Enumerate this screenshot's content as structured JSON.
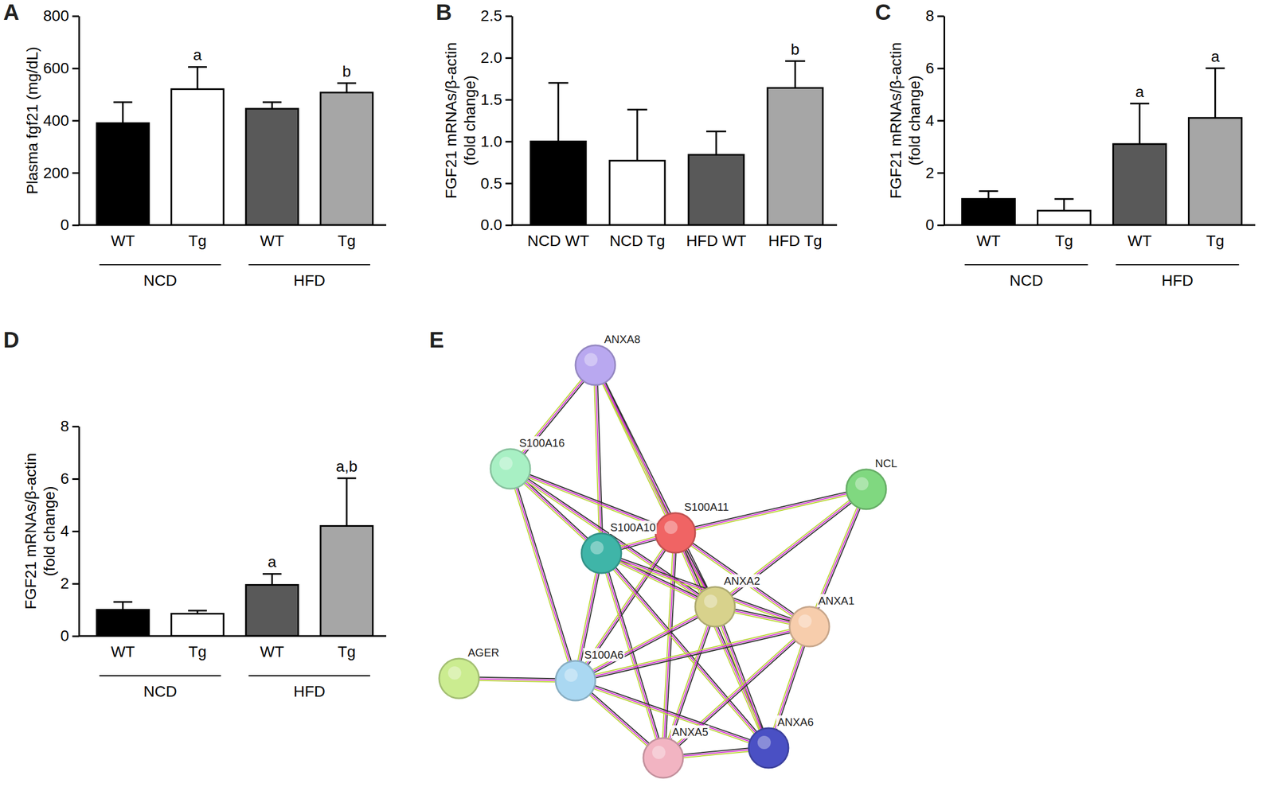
{
  "chart_data": [
    {
      "type": "bar",
      "panel": "A",
      "ylabel": "Plasma fgf21 (mg/dL)",
      "categories": [
        "WT",
        "Tg",
        "WT",
        "Tg"
      ],
      "group_labels": [
        "NCD",
        "HFD"
      ],
      "values": [
        390,
        520,
        445,
        507
      ],
      "errors": [
        80,
        85,
        25,
        36
      ],
      "annotations": [
        null,
        "a",
        null,
        "b"
      ],
      "colors": [
        "#000000",
        "#ffffff",
        "#595959",
        "#a6a6a6"
      ],
      "ylim": [
        0,
        800
      ],
      "yticks": [
        0,
        200,
        400,
        600,
        800
      ]
    },
    {
      "type": "bar",
      "panel": "B",
      "ylabel": [
        "FGF21 mRNAs/β-actin",
        "(fold change)"
      ],
      "categories": [
        "NCD WT",
        "NCD Tg",
        "HFD WT",
        "HFD Tg"
      ],
      "values": [
        1.0,
        0.77,
        0.84,
        1.64
      ],
      "errors": [
        0.7,
        0.61,
        0.28,
        0.32
      ],
      "annotations": [
        null,
        null,
        null,
        "b"
      ],
      "colors": [
        "#000000",
        "#ffffff",
        "#595959",
        "#a6a6a6"
      ],
      "ylim": [
        0,
        2.5
      ],
      "yticks": [
        {
          "value": 0,
          "label": "0.0"
        },
        0.5,
        {
          "value": 1,
          "label": "1.0"
        },
        1.5,
        {
          "value": 2,
          "label": "2.0"
        },
        2.5
      ]
    },
    {
      "type": "bar",
      "panel": "C",
      "ylabel": [
        "FGF21 mRNAs/β-actin",
        "(fold change)"
      ],
      "categories": [
        "WT",
        "Tg",
        "WT",
        "Tg"
      ],
      "group_labels": [
        "NCD",
        "HFD"
      ],
      "values": [
        1.0,
        0.55,
        3.1,
        4.1
      ],
      "errors": [
        0.3,
        0.45,
        1.55,
        1.9
      ],
      "annotations": [
        null,
        null,
        "a",
        "a"
      ],
      "colors": [
        "#000000",
        "#ffffff",
        "#595959",
        "#a6a6a6"
      ],
      "ylim": [
        0,
        8
      ],
      "yticks": [
        0,
        2,
        4,
        6,
        8
      ]
    },
    {
      "type": "bar",
      "panel": "D",
      "ylabel": [
        "FGF21 mRNAs/β-actin",
        "(fold change)"
      ],
      "categories": [
        "WT",
        "Tg",
        "WT",
        "Tg"
      ],
      "group_labels": [
        "NCD",
        "HFD"
      ],
      "values": [
        1.0,
        0.85,
        1.95,
        4.2
      ],
      "errors": [
        0.3,
        0.12,
        0.42,
        1.82
      ],
      "annotations": [
        null,
        null,
        "a",
        "a,b"
      ],
      "colors": [
        "#000000",
        "#ffffff",
        "#595959",
        "#a6a6a6"
      ],
      "ylim": [
        0,
        8
      ],
      "yticks": [
        0,
        2,
        4,
        6,
        8
      ]
    }
  ],
  "network": {
    "panel": "E",
    "nodes": [
      {
        "label": "ANXA8",
        "color": "#b9a8f0"
      },
      {
        "label": "S100A16",
        "color": "#a8f0c4"
      },
      {
        "label": "S100A11",
        "color": "#f06464"
      },
      {
        "label": "NCL",
        "color": "#80d880"
      },
      {
        "label": "S100A10",
        "color": "#3fb5a8"
      },
      {
        "label": "ANXA2",
        "color": "#d8d28c"
      },
      {
        "label": "ANXA1",
        "color": "#f7cdac"
      },
      {
        "label": "AGER",
        "color": "#cbec90"
      },
      {
        "label": "S100A6",
        "color": "#aad8f2"
      },
      {
        "label": "ANXA5",
        "color": "#f2b4c2"
      },
      {
        "label": "ANXA6",
        "color": "#4a50c4"
      }
    ],
    "edges": [
      [
        0,
        1
      ],
      [
        0,
        2
      ],
      [
        0,
        4
      ],
      [
        0,
        5
      ],
      [
        1,
        2
      ],
      [
        1,
        4
      ],
      [
        1,
        8
      ],
      [
        1,
        5
      ],
      [
        2,
        3
      ],
      [
        2,
        4
      ],
      [
        2,
        5
      ],
      [
        2,
        6
      ],
      [
        2,
        8
      ],
      [
        2,
        9
      ],
      [
        2,
        10
      ],
      [
        3,
        5
      ],
      [
        3,
        6
      ],
      [
        4,
        5
      ],
      [
        4,
        6
      ],
      [
        4,
        8
      ],
      [
        4,
        9
      ],
      [
        4,
        10
      ],
      [
        5,
        6
      ],
      [
        5,
        8
      ],
      [
        5,
        9
      ],
      [
        5,
        10
      ],
      [
        6,
        8
      ],
      [
        6,
        9
      ],
      [
        6,
        10
      ],
      [
        7,
        8
      ],
      [
        8,
        9
      ],
      [
        8,
        10
      ],
      [
        9,
        10
      ]
    ]
  }
}
